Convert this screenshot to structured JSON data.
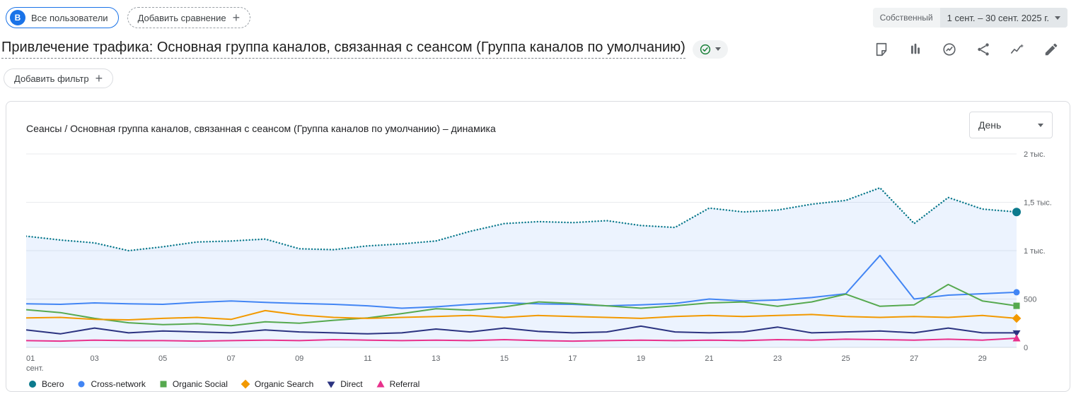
{
  "topbar": {
    "audience_chip": {
      "avatar_letter": "В",
      "label": "Все пользователи"
    },
    "add_comparison_label": "Добавить сравнение",
    "ownership_label": "Собственный",
    "date_range": "1 сент. – 30 сент. 2025 г."
  },
  "header": {
    "title": "Привлечение трафика: Основная группа каналов, связанная с сеансом (Группа каналов по умолчанию)",
    "action_icons": [
      "note",
      "compare-bars",
      "insights-circle",
      "share",
      "stats-sparkline",
      "edit-pencil"
    ]
  },
  "filters": {
    "add_filter_label": "Добавить фильтр"
  },
  "card": {
    "chart_title": "Сеансы / Основная группа каналов, связанная с сеансом (Группа каналов по умолчанию) – динамика",
    "granularity_value": "День"
  },
  "chart_data": {
    "type": "line",
    "title": "Сеансы / Основная группа каналов, связанная с сеансом (Группа каналов по умолчанию) – динамика",
    "xlabel": "",
    "ylabel": "",
    "ylim": [
      0,
      2000
    ],
    "grid": true,
    "legend_position": "bottom",
    "fill_color": "rgba(66,133,244,0.10)",
    "x": [
      1,
      2,
      3,
      4,
      5,
      6,
      7,
      8,
      9,
      10,
      11,
      12,
      13,
      14,
      15,
      16,
      17,
      18,
      19,
      20,
      21,
      22,
      23,
      24,
      25,
      26,
      27,
      28,
      29,
      30
    ],
    "x_ticks": [
      {
        "i": 0,
        "label": "01",
        "sub": "сент."
      },
      {
        "i": 2,
        "label": "03"
      },
      {
        "i": 4,
        "label": "05"
      },
      {
        "i": 6,
        "label": "07"
      },
      {
        "i": 8,
        "label": "09"
      },
      {
        "i": 10,
        "label": "11"
      },
      {
        "i": 12,
        "label": "13"
      },
      {
        "i": 14,
        "label": "15"
      },
      {
        "i": 16,
        "label": "17"
      },
      {
        "i": 18,
        "label": "19"
      },
      {
        "i": 20,
        "label": "21"
      },
      {
        "i": 22,
        "label": "23"
      },
      {
        "i": 24,
        "label": "25"
      },
      {
        "i": 26,
        "label": "27"
      },
      {
        "i": 28,
        "label": "29"
      }
    ],
    "y_ticks": [
      {
        "value": 0,
        "label": "0"
      },
      {
        "value": 500,
        "label": "500"
      },
      {
        "value": 1000,
        "label": "1 тыс."
      },
      {
        "value": 1500,
        "label": "1,5 тыс."
      },
      {
        "value": 2000,
        "label": "2 тыс."
      }
    ],
    "series": [
      {
        "name": "Всего",
        "color": "#0c7a8d",
        "style": "dotted",
        "marker": "circle",
        "fill": true,
        "values": [
          1150,
          1110,
          1080,
          1000,
          1040,
          1090,
          1100,
          1120,
          1020,
          1010,
          1050,
          1070,
          1100,
          1200,
          1280,
          1300,
          1290,
          1310,
          1260,
          1240,
          1440,
          1400,
          1420,
          1480,
          1520,
          1650,
          1280,
          1550,
          1430,
          1400
        ]
      },
      {
        "name": "Cross-network",
        "color": "#4285f4",
        "style": "solid",
        "marker": "circle",
        "fill": false,
        "values": [
          450,
          445,
          460,
          450,
          445,
          465,
          480,
          465,
          455,
          445,
          430,
          405,
          420,
          445,
          460,
          450,
          445,
          430,
          440,
          455,
          500,
          480,
          490,
          515,
          555,
          950,
          500,
          540,
          555,
          570
        ]
      },
      {
        "name": "Organic Social",
        "color": "#56a94f",
        "style": "solid",
        "marker": "square",
        "fill": false,
        "values": [
          390,
          360,
          300,
          255,
          235,
          245,
          225,
          265,
          250,
          280,
          305,
          350,
          400,
          385,
          420,
          470,
          455,
          430,
          405,
          430,
          460,
          470,
          425,
          470,
          550,
          425,
          440,
          650,
          480,
          430
        ]
      },
      {
        "name": "Organic Search",
        "color": "#f29900",
        "style": "solid",
        "marker": "diamond",
        "fill": false,
        "values": [
          305,
          310,
          290,
          285,
          300,
          310,
          290,
          380,
          335,
          310,
          300,
          310,
          320,
          330,
          310,
          330,
          320,
          310,
          300,
          320,
          330,
          320,
          330,
          340,
          320,
          310,
          320,
          310,
          330,
          300
        ]
      },
      {
        "name": "Direct",
        "color": "#2b3380",
        "style": "solid",
        "marker": "triangle-down",
        "fill": false,
        "values": [
          180,
          140,
          200,
          150,
          170,
          160,
          150,
          180,
          160,
          150,
          140,
          150,
          190,
          160,
          200,
          165,
          150,
          160,
          220,
          160,
          150,
          160,
          210,
          150,
          160,
          170,
          150,
          200,
          150,
          150
        ]
      },
      {
        "name": "Referral",
        "color": "#e8318c",
        "style": "solid",
        "marker": "triangle-up",
        "fill": false,
        "values": [
          70,
          65,
          75,
          70,
          70,
          65,
          70,
          75,
          70,
          80,
          75,
          70,
          75,
          70,
          80,
          70,
          65,
          70,
          75,
          70,
          75,
          70,
          80,
          75,
          85,
          80,
          75,
          85,
          75,
          95
        ]
      }
    ]
  }
}
